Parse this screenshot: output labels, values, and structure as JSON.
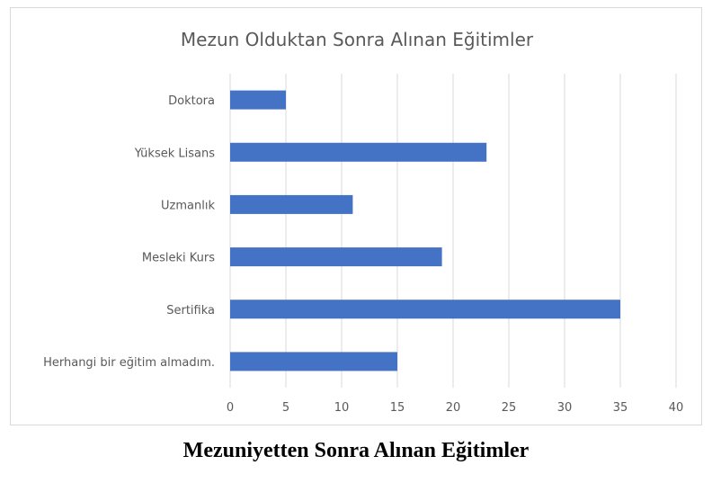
{
  "chart_data": {
    "type": "bar",
    "orientation": "horizontal",
    "title": "Mezun Olduktan Sonra Alınan Eğitimler",
    "categories": [
      "Doktora",
      "Yüksek Lisans",
      "Uzmanlık",
      "Mesleki Kurs",
      "Sertifika",
      "Herhangi bir eğitim almadım."
    ],
    "values": [
      5,
      23,
      11,
      19,
      35,
      15
    ],
    "xlim": [
      0,
      40
    ],
    "ticks": [
      "0",
      "5",
      "10",
      "15",
      "20",
      "25",
      "30",
      "35",
      "40"
    ],
    "grid": true,
    "bar_color": "#4472c4",
    "grid_color": "#d9d9d9",
    "text_color": "#595959"
  },
  "caption": "Mezuniyetten Sonra Alınan Eğitimler"
}
